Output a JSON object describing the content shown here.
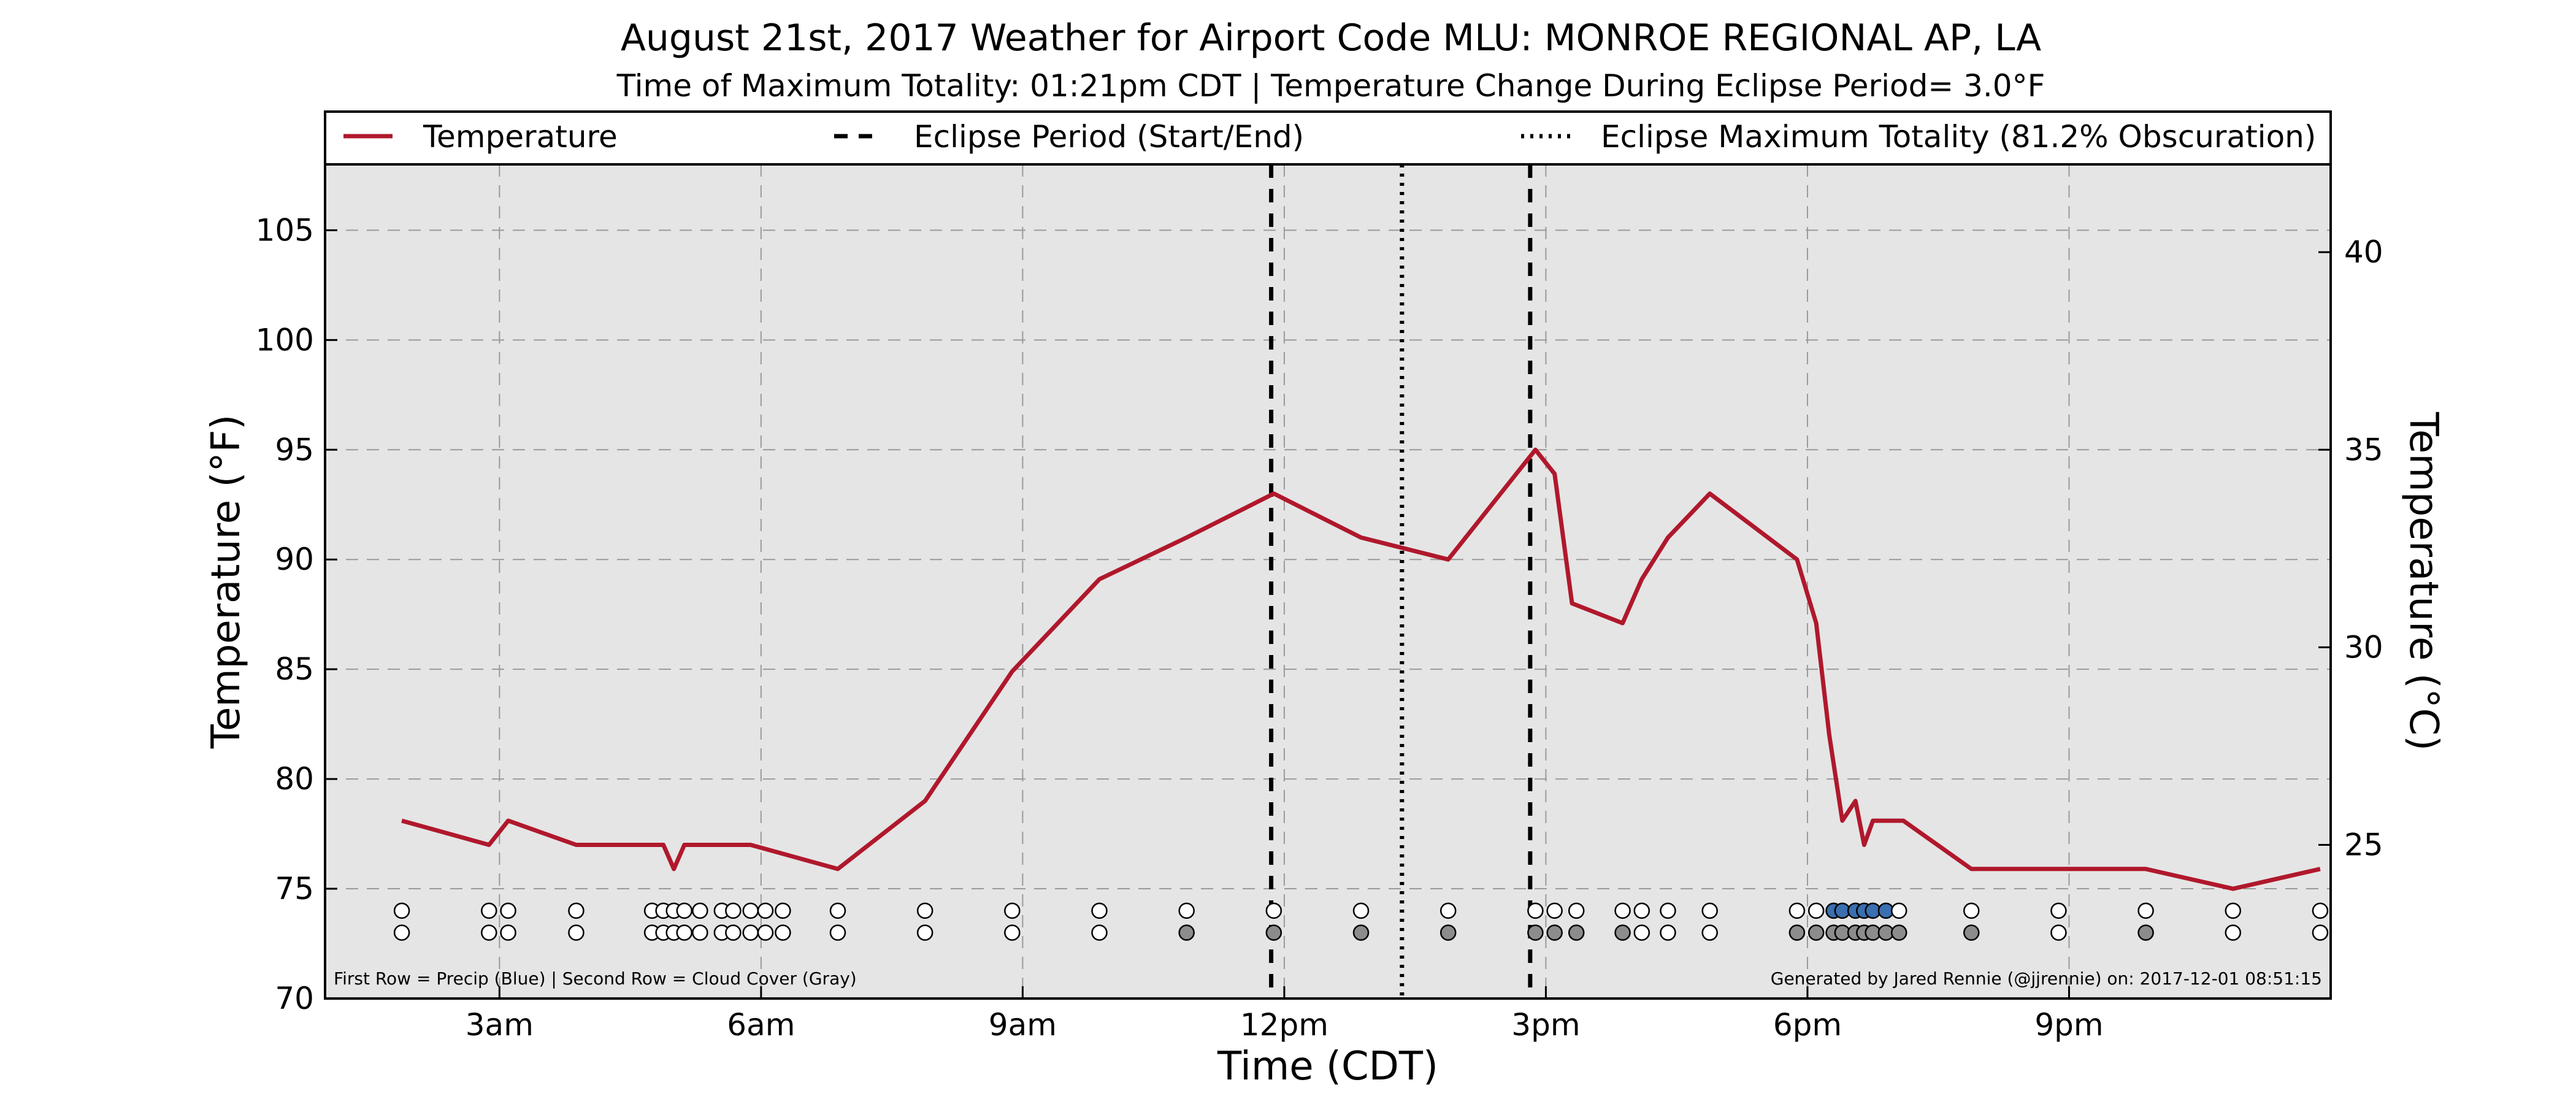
{
  "chart_data": {
    "type": "line",
    "title": "August 21st, 2017 Weather for Airport Code MLU: MONROE REGIONAL AP, LA",
    "subtitle": "Time of Maximum Totality: 01:21pm CDT | Temperature Change During Eclipse Period= 3.0°F",
    "xlabel": "Time (CDT)",
    "ylabel": "Temperature (°F)",
    "ylabel_right": "Temperature (°C)",
    "xlim": [
      1.0,
      24.0
    ],
    "ylim": [
      70,
      108
    ],
    "x_ticks": [
      {
        "x": 3,
        "label": "3am"
      },
      {
        "x": 6,
        "label": "6am"
      },
      {
        "x": 9,
        "label": "9am"
      },
      {
        "x": 12,
        "label": "12pm"
      },
      {
        "x": 15,
        "label": "3pm"
      },
      {
        "x": 18,
        "label": "6pm"
      },
      {
        "x": 21,
        "label": "9pm"
      }
    ],
    "y_ticks": [
      70,
      75,
      80,
      85,
      90,
      95,
      100,
      105
    ],
    "y_ticks_right": [
      25,
      30,
      35,
      40
    ],
    "grid": true,
    "legend_position": "top",
    "legend": [
      {
        "label": "Temperature",
        "style": "solid",
        "color": "#b0182c"
      },
      {
        "label": "Eclipse Period (Start/End)",
        "style": "dashed",
        "color": "#000000"
      },
      {
        "label": "Eclipse Maximum Totality (81.2% Obscuration)",
        "style": "dotted",
        "color": "#000000"
      }
    ],
    "series": [
      {
        "name": "Temperature",
        "color": "#b0182c",
        "points": [
          [
            1.88,
            78.1
          ],
          [
            2.88,
            77.0
          ],
          [
            3.1,
            78.1
          ],
          [
            3.88,
            77.0
          ],
          [
            4.88,
            77.0
          ],
          [
            5.0,
            75.9
          ],
          [
            5.12,
            77.0
          ],
          [
            5.3,
            77.0
          ],
          [
            5.88,
            77.0
          ],
          [
            6.88,
            75.9
          ],
          [
            7.88,
            79.0
          ],
          [
            8.88,
            84.9
          ],
          [
            9.88,
            89.1
          ],
          [
            10.88,
            91.0
          ],
          [
            11.88,
            93.0
          ],
          [
            12.88,
            91.0
          ],
          [
            13.88,
            90.0
          ],
          [
            14.88,
            95.0
          ],
          [
            15.1,
            93.9
          ],
          [
            15.3,
            88.0
          ],
          [
            15.88,
            87.1
          ],
          [
            16.1,
            89.1
          ],
          [
            16.4,
            91.0
          ],
          [
            16.88,
            93.0
          ],
          [
            17.88,
            90.0
          ],
          [
            18.1,
            87.1
          ],
          [
            18.25,
            82.0
          ],
          [
            18.4,
            78.1
          ],
          [
            18.55,
            79.0
          ],
          [
            18.65,
            77.0
          ],
          [
            18.75,
            78.1
          ],
          [
            19.1,
            78.1
          ],
          [
            19.88,
            75.9
          ],
          [
            20.88,
            75.9
          ],
          [
            21.88,
            75.9
          ],
          [
            22.88,
            75.0
          ],
          [
            23.88,
            75.9
          ]
        ]
      }
    ],
    "eclipse_start": 11.85,
    "eclipse_end": 14.82,
    "eclipse_max": 13.35,
    "marker_rows": [
      {
        "y": 74,
        "label": "Precip",
        "color": "#3a6fb0"
      },
      {
        "y": 73,
        "label": "Cloud Cover",
        "color": "#8c8c8c"
      }
    ],
    "markers": [
      {
        "x": 1.88,
        "precip": false,
        "cloud": false
      },
      {
        "x": 2.88,
        "precip": false,
        "cloud": false
      },
      {
        "x": 3.1,
        "precip": false,
        "cloud": false
      },
      {
        "x": 3.88,
        "precip": false,
        "cloud": false
      },
      {
        "x": 4.75,
        "precip": false,
        "cloud": false
      },
      {
        "x": 4.88,
        "precip": false,
        "cloud": false
      },
      {
        "x": 5.0,
        "precip": false,
        "cloud": false
      },
      {
        "x": 5.12,
        "precip": false,
        "cloud": false
      },
      {
        "x": 5.3,
        "precip": false,
        "cloud": false
      },
      {
        "x": 5.55,
        "precip": false,
        "cloud": false
      },
      {
        "x": 5.68,
        "precip": false,
        "cloud": false
      },
      {
        "x": 5.88,
        "precip": false,
        "cloud": false
      },
      {
        "x": 6.05,
        "precip": false,
        "cloud": false
      },
      {
        "x": 6.25,
        "precip": false,
        "cloud": false
      },
      {
        "x": 6.88,
        "precip": false,
        "cloud": false
      },
      {
        "x": 7.88,
        "precip": false,
        "cloud": false
      },
      {
        "x": 8.88,
        "precip": false,
        "cloud": false
      },
      {
        "x": 9.88,
        "precip": false,
        "cloud": false
      },
      {
        "x": 10.88,
        "precip": false,
        "cloud": true
      },
      {
        "x": 11.88,
        "precip": false,
        "cloud": true
      },
      {
        "x": 12.88,
        "precip": false,
        "cloud": true
      },
      {
        "x": 13.88,
        "precip": false,
        "cloud": true
      },
      {
        "x": 14.88,
        "precip": false,
        "cloud": true
      },
      {
        "x": 15.1,
        "precip": false,
        "cloud": true
      },
      {
        "x": 15.35,
        "precip": false,
        "cloud": true
      },
      {
        "x": 15.88,
        "precip": false,
        "cloud": true
      },
      {
        "x": 16.1,
        "precip": false,
        "cloud": false
      },
      {
        "x": 16.4,
        "precip": false,
        "cloud": false
      },
      {
        "x": 16.88,
        "precip": false,
        "cloud": false
      },
      {
        "x": 17.88,
        "precip": false,
        "cloud": true
      },
      {
        "x": 18.1,
        "precip": false,
        "cloud": true
      },
      {
        "x": 18.3,
        "precip": true,
        "cloud": true
      },
      {
        "x": 18.4,
        "precip": true,
        "cloud": true
      },
      {
        "x": 18.55,
        "precip": true,
        "cloud": true
      },
      {
        "x": 18.65,
        "precip": true,
        "cloud": true
      },
      {
        "x": 18.75,
        "precip": true,
        "cloud": true
      },
      {
        "x": 18.9,
        "precip": true,
        "cloud": true
      },
      {
        "x": 19.05,
        "precip": false,
        "cloud": true
      },
      {
        "x": 19.88,
        "precip": false,
        "cloud": true
      },
      {
        "x": 20.88,
        "precip": false,
        "cloud": false
      },
      {
        "x": 21.88,
        "precip": false,
        "cloud": true
      },
      {
        "x": 22.88,
        "precip": false,
        "cloud": false
      },
      {
        "x": 23.88,
        "precip": false,
        "cloud": false
      }
    ],
    "footnote_left": "First Row = Precip (Blue) | Second Row = Cloud Cover (Gray)",
    "footnote_right": "Generated by Jared Rennie (@jjrennie) on: 2017-12-01 08:51:15"
  }
}
